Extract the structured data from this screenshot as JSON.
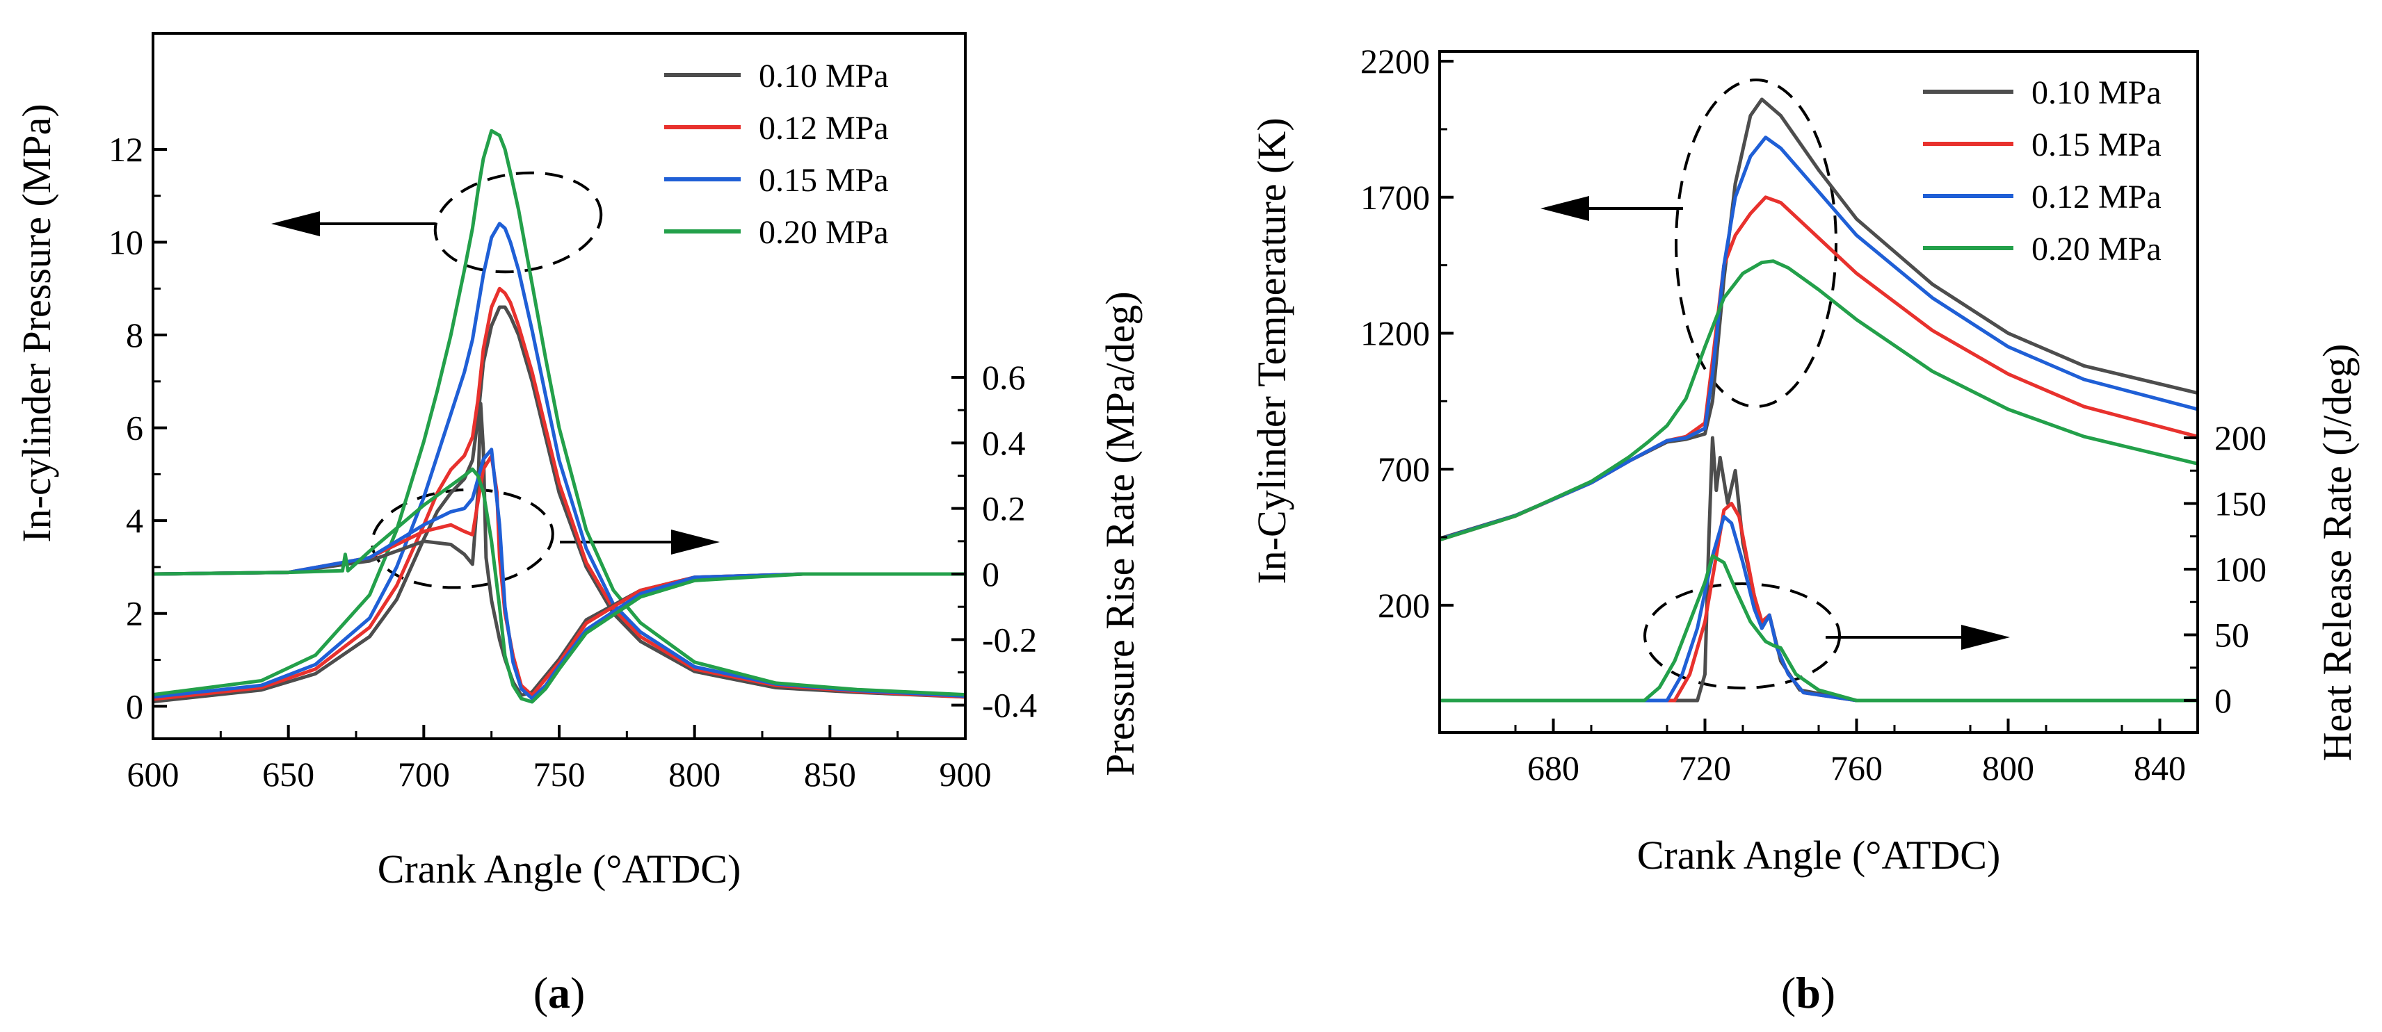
{
  "chart_data": [
    {
      "panel": "(a)",
      "panel_letter": "a",
      "type": "line",
      "xlabel": "Crank Angle (°ATDC)",
      "ylabel_left": "In-cylinder Pressure (MPa)",
      "ylabel_right": "Pressure Rise Rate (MPa/deg)",
      "xlim": [
        600,
        900
      ],
      "x_ticks": [
        600,
        650,
        700,
        750,
        800,
        850,
        900
      ],
      "left_ticks": [
        0,
        2,
        4,
        6,
        8,
        10,
        12
      ],
      "right_ticks": [
        0.6,
        0.4,
        0.2,
        0,
        -0.2,
        -0.4
      ],
      "legend": [
        {
          "label": "0.10 MPa",
          "color": "#4d4d4d"
        },
        {
          "label": "0.12 MPa",
          "color": "#e8312d"
        },
        {
          "label": "0.15 MPa",
          "color": "#1f5fd6"
        },
        {
          "label": "0.20 MPa",
          "color": "#23a04a"
        }
      ],
      "annotations": [
        {
          "text": "arrow pointing left",
          "target_axis": "left",
          "about": "pressure curves"
        },
        {
          "text": "arrow pointing right",
          "target_axis": "right",
          "about": "pressure rise rate curves"
        }
      ],
      "series": [
        {
          "name": "0.10 MPa",
          "axis": "left",
          "x": [
            600,
            640,
            660,
            680,
            690,
            700,
            705,
            710,
            715,
            718,
            720,
            722,
            725,
            728,
            730,
            732,
            735,
            740,
            745,
            750,
            760,
            770,
            780,
            800,
            830,
            860,
            900
          ],
          "y": [
            0.1,
            0.35,
            0.7,
            1.5,
            2.3,
            3.6,
            4.2,
            4.6,
            4.9,
            5.3,
            6.2,
            7.4,
            8.2,
            8.6,
            8.6,
            8.4,
            8.0,
            7.0,
            5.8,
            4.6,
            3.0,
            2.0,
            1.4,
            0.75,
            0.4,
            0.3,
            0.2
          ]
        },
        {
          "name": "0.12 MPa",
          "axis": "left",
          "x": [
            600,
            640,
            660,
            680,
            690,
            700,
            705,
            710,
            715,
            718,
            720,
            722,
            725,
            728,
            730,
            732,
            735,
            740,
            745,
            750,
            760,
            770,
            780,
            800,
            830,
            860,
            900
          ],
          "y": [
            0.15,
            0.4,
            0.8,
            1.7,
            2.6,
            3.9,
            4.6,
            5.1,
            5.4,
            5.8,
            6.6,
            7.7,
            8.6,
            9.0,
            8.9,
            8.7,
            8.2,
            7.2,
            6.0,
            4.8,
            3.1,
            2.1,
            1.5,
            0.8,
            0.45,
            0.32,
            0.2
          ]
        },
        {
          "name": "0.15 MPa",
          "axis": "left",
          "x": [
            600,
            640,
            660,
            680,
            690,
            700,
            705,
            710,
            715,
            718,
            720,
            722,
            725,
            728,
            730,
            732,
            735,
            740,
            745,
            750,
            760,
            770,
            780,
            800,
            830,
            860,
            900
          ],
          "y": [
            0.2,
            0.45,
            0.9,
            1.9,
            3.0,
            4.5,
            5.4,
            6.3,
            7.2,
            7.9,
            8.6,
            9.3,
            10.1,
            10.4,
            10.3,
            10.0,
            9.4,
            8.1,
            6.7,
            5.3,
            3.4,
            2.2,
            1.6,
            0.85,
            0.48,
            0.34,
            0.22
          ]
        },
        {
          "name": "0.20 MPa",
          "axis": "left",
          "x": [
            600,
            640,
            660,
            680,
            690,
            700,
            705,
            710,
            715,
            718,
            720,
            722,
            725,
            728,
            730,
            732,
            735,
            740,
            745,
            750,
            760,
            770,
            780,
            800,
            830,
            860,
            900
          ],
          "y": [
            0.25,
            0.55,
            1.1,
            2.4,
            3.8,
            5.7,
            6.8,
            8.0,
            9.4,
            10.3,
            11.1,
            11.8,
            12.4,
            12.3,
            12.0,
            11.5,
            10.7,
            9.1,
            7.5,
            6.0,
            3.8,
            2.5,
            1.8,
            0.95,
            0.5,
            0.36,
            0.25
          ]
        },
        {
          "name": "0.10 MPa",
          "axis": "right",
          "x": [
            600,
            650,
            680,
            700,
            710,
            715,
            718,
            720,
            721,
            722,
            723,
            725,
            728,
            730,
            733,
            736,
            740,
            750,
            760,
            780,
            800,
            840,
            900
          ],
          "y": [
            0,
            0.005,
            0.04,
            0.1,
            0.09,
            0.06,
            0.03,
            0.25,
            0.52,
            0.38,
            0.05,
            -0.08,
            -0.2,
            -0.26,
            -0.33,
            -0.37,
            -0.36,
            -0.26,
            -0.14,
            -0.05,
            -0.01,
            0,
            0
          ]
        },
        {
          "name": "0.12 MPa",
          "axis": "right",
          "x": [
            600,
            650,
            680,
            700,
            710,
            715,
            718,
            722,
            725,
            727,
            728,
            730,
            733,
            736,
            740,
            750,
            760,
            780,
            800,
            840,
            900
          ],
          "y": [
            0,
            0.005,
            0.05,
            0.13,
            0.15,
            0.13,
            0.12,
            0.32,
            0.36,
            0.25,
            0.05,
            -0.12,
            -0.25,
            -0.34,
            -0.37,
            -0.27,
            -0.15,
            -0.05,
            -0.01,
            0,
            0
          ]
        },
        {
          "name": "0.15 MPa",
          "axis": "right",
          "x": [
            600,
            650,
            680,
            700,
            710,
            715,
            718,
            722,
            725,
            728,
            730,
            733,
            736,
            740,
            745,
            750,
            760,
            780,
            800,
            840,
            900
          ],
          "y": [
            0,
            0.005,
            0.05,
            0.15,
            0.19,
            0.2,
            0.23,
            0.35,
            0.38,
            0.15,
            -0.1,
            -0.27,
            -0.35,
            -0.38,
            -0.34,
            -0.28,
            -0.17,
            -0.06,
            -0.01,
            0,
            0
          ]
        },
        {
          "name": "0.20 MPa",
          "axis": "right",
          "x": [
            600,
            650,
            670,
            671,
            672,
            680,
            700,
            710,
            715,
            718,
            720,
            722,
            725,
            728,
            730,
            733,
            736,
            740,
            745,
            750,
            760,
            780,
            800,
            840,
            900
          ],
          "y": [
            0,
            0.005,
            0.01,
            0.06,
            0.01,
            0.07,
            0.21,
            0.27,
            0.3,
            0.32,
            0.3,
            0.25,
            0.1,
            -0.1,
            -0.25,
            -0.34,
            -0.38,
            -0.39,
            -0.35,
            -0.29,
            -0.18,
            -0.07,
            -0.02,
            0,
            0
          ]
        }
      ]
    },
    {
      "panel": "(b)",
      "panel_letter": "b",
      "type": "line",
      "xlabel": "Crank Angle (°ATDC)",
      "ylabel_left": "In-Cylinder Temperature (K)",
      "ylabel_right": "Heat Release Rate (J/deg)",
      "xlim": [
        650,
        850
      ],
      "x_ticks": [
        680,
        720,
        760,
        800,
        840
      ],
      "left_ticks": [
        200,
        700,
        1200,
        1700,
        2200
      ],
      "right_ticks": [
        200,
        150,
        100,
        50,
        0
      ],
      "legend": [
        {
          "label": "0.10 MPa",
          "color": "#4d4d4d"
        },
        {
          "label": "0.15 MPa",
          "color": "#e8312d"
        },
        {
          "label": "0.12 MPa",
          "color": "#1f5fd6"
        },
        {
          "label": "0.20 MPa",
          "color": "#23a04a"
        }
      ],
      "annotations": [
        {
          "text": "arrow pointing left",
          "target_axis": "left",
          "about": "temperature curves"
        },
        {
          "text": "arrow pointing right",
          "target_axis": "right",
          "about": "heat release rate curves"
        }
      ],
      "series": [
        {
          "name": "0.10 MPa",
          "axis": "left",
          "x": [
            650,
            670,
            690,
            700,
            710,
            715,
            720,
            722,
            725,
            728,
            732,
            735,
            740,
            750,
            760,
            780,
            800,
            820,
            850
          ],
          "y": [
            445,
            530,
            650,
            730,
            800,
            810,
            830,
            950,
            1400,
            1750,
            2000,
            2060,
            2000,
            1800,
            1620,
            1380,
            1200,
            1080,
            980
          ]
        },
        {
          "name": "0.15 MPa",
          "axis": "left",
          "x": [
            650,
            670,
            690,
            700,
            710,
            715,
            720,
            722,
            725,
            728,
            732,
            736,
            740,
            750,
            760,
            780,
            800,
            820,
            850
          ],
          "y": [
            440,
            528,
            650,
            730,
            805,
            820,
            870,
            1100,
            1450,
            1560,
            1640,
            1700,
            1680,
            1550,
            1420,
            1210,
            1050,
            930,
            820
          ]
        },
        {
          "name": "0.12 MPa",
          "axis": "left",
          "x": [
            650,
            670,
            690,
            700,
            710,
            715,
            720,
            722,
            725,
            728,
            732,
            736,
            740,
            750,
            760,
            780,
            800,
            820,
            850
          ],
          "y": [
            442,
            529,
            650,
            730,
            805,
            815,
            850,
            1050,
            1450,
            1700,
            1850,
            1920,
            1880,
            1720,
            1560,
            1330,
            1150,
            1030,
            920
          ]
        },
        {
          "name": "0.20 MPa",
          "axis": "left",
          "x": [
            650,
            670,
            690,
            700,
            705,
            710,
            715,
            720,
            725,
            730,
            735,
            738,
            742,
            750,
            760,
            780,
            800,
            820,
            850
          ],
          "y": [
            440,
            528,
            655,
            745,
            800,
            860,
            960,
            1150,
            1330,
            1420,
            1460,
            1465,
            1440,
            1360,
            1250,
            1060,
            920,
            820,
            720
          ]
        },
        {
          "name": "0.10 MPa",
          "axis": "right",
          "x": [
            650,
            715,
            718,
            720,
            721,
            722,
            723,
            724,
            726,
            728,
            730,
            733,
            735,
            737,
            740,
            745,
            760,
            850
          ],
          "y": [
            0,
            0,
            0,
            20,
            120,
            200,
            160,
            185,
            150,
            175,
            120,
            80,
            55,
            65,
            30,
            8,
            0,
            0
          ]
        },
        {
          "name": "0.15 MPa",
          "axis": "right",
          "x": [
            650,
            712,
            716,
            720,
            723,
            725,
            727,
            729,
            731,
            733,
            735,
            737,
            739,
            742,
            746,
            760,
            850
          ],
          "y": [
            0,
            0,
            20,
            60,
            110,
            145,
            150,
            140,
            110,
            80,
            60,
            65,
            40,
            20,
            6,
            0,
            0
          ]
        },
        {
          "name": "0.12 MPa",
          "axis": "right",
          "x": [
            650,
            710,
            714,
            718,
            722,
            725,
            727,
            730,
            733,
            735,
            737,
            739,
            742,
            746,
            760,
            850
          ],
          "y": [
            0,
            0,
            20,
            55,
            110,
            140,
            135,
            105,
            70,
            55,
            65,
            40,
            20,
            6,
            0,
            0
          ]
        },
        {
          "name": "0.20 MPa",
          "axis": "right",
          "x": [
            650,
            704,
            708,
            712,
            716,
            720,
            722,
            725,
            728,
            732,
            736,
            738,
            740,
            744,
            750,
            760,
            850
          ],
          "y": [
            0,
            0,
            10,
            30,
            60,
            90,
            110,
            105,
            85,
            60,
            45,
            42,
            40,
            20,
            8,
            0,
            0
          ]
        }
      ]
    }
  ]
}
